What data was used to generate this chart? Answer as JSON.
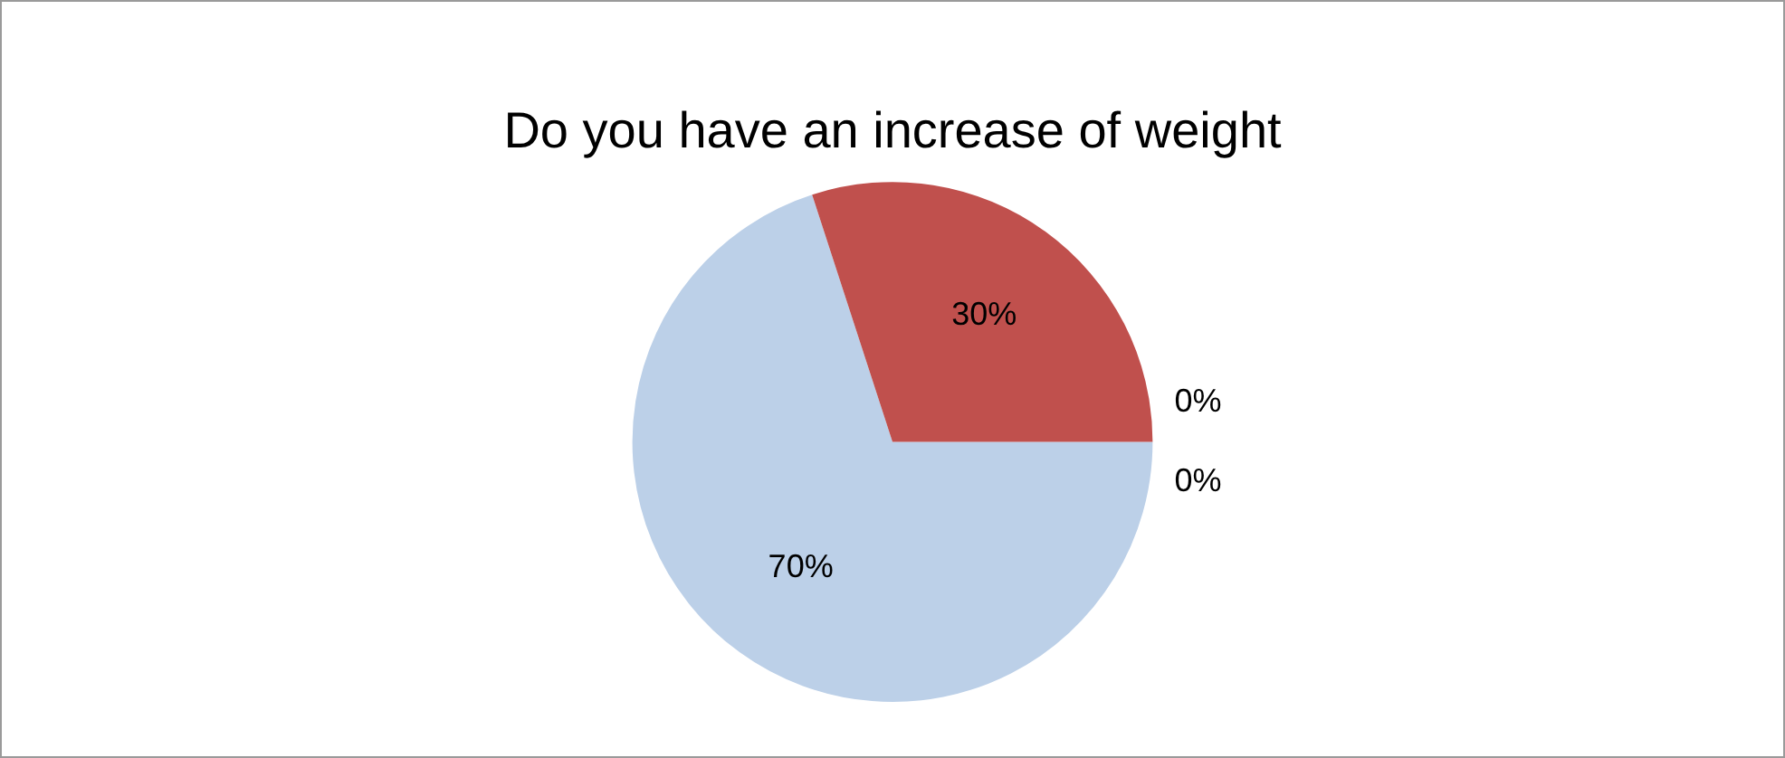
{
  "chart_data": {
    "type": "pie",
    "title": "Do you have an increase of weight",
    "categories": [
      null,
      null,
      null,
      null
    ],
    "values": [
      70,
      30,
      0,
      0
    ],
    "colors": [
      "#bcd0e8",
      "#c0504d",
      "#9bbb59",
      "#8064a2"
    ],
    "value_labels": [
      "70%",
      "30%",
      "0%",
      "0%"
    ],
    "legend": false
  }
}
